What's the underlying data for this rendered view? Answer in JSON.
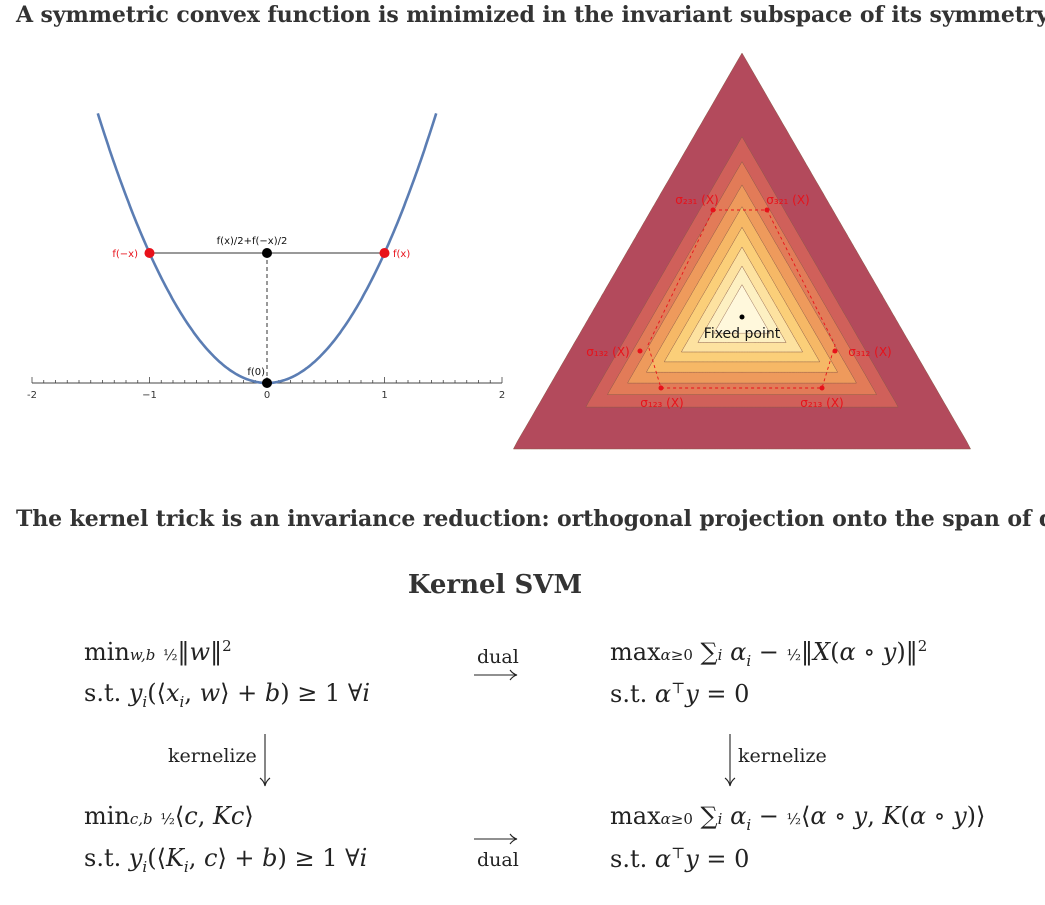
{
  "headings": {
    "top": "A symmetric convex function is minimized in the invariant subspace of its symmetry",
    "middle": "The kernel trick is an invariance reduction: orthogonal projection onto the span of data"
  },
  "parabola_plot": {
    "xlim": [
      -2,
      2
    ],
    "x_ticks": [
      "-2",
      "−1",
      "0",
      "1",
      "2"
    ],
    "points": [
      {
        "x": -1,
        "y": 1,
        "label": "f(−x)",
        "color": "#e8111a"
      },
      {
        "x": 1,
        "y": 1,
        "label": "f(x)",
        "color": "#e8111a"
      },
      {
        "x": 0,
        "y": 1,
        "label": "f(x)/2+f(−x)/2",
        "color": "#000000"
      },
      {
        "x": 0,
        "y": 0,
        "label": "f(0)",
        "color": "#000000"
      }
    ],
    "curve_color": "#5b7db3"
  },
  "triangle_plot": {
    "center_label": "Fixed point",
    "orbit_labels": {
      "s231": "σ₂₃₁ (X)",
      "s321": "σ₃₂₁ (X)",
      "s132": "σ₁₃₂ (X)",
      "s312": "σ₃₁₂ (X)",
      "s123": "σ₁₂₃ (X)",
      "s213": "σ₂₁₃ (X)"
    },
    "level_colors": [
      "#b34a5c",
      "#d0605a",
      "#e27b58",
      "#ee9a5c",
      "#f6b866",
      "#fbcf79",
      "#fde2a0",
      "#fdf0c2",
      "#fff8dc"
    ],
    "orbit_color": "#e8111a"
  },
  "svm": {
    "title": "Kernel SVM",
    "dual_label": "dual",
    "kernelize_label": "kernelize"
  }
}
